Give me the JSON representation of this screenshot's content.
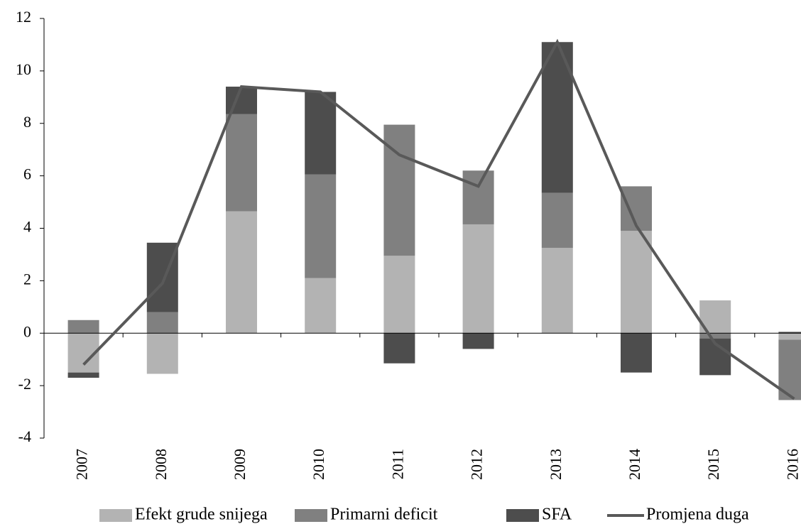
{
  "chart_data": {
    "type": "bar",
    "stacked": true,
    "categories": [
      "2007",
      "2008",
      "2009",
      "2010",
      "2011",
      "2012",
      "2013",
      "2014",
      "2015",
      "2016"
    ],
    "series": [
      {
        "name": "Efekt grude snijega",
        "color": "#b3b3b3",
        "values": [
          -1.5,
          -1.55,
          4.65,
          2.1,
          2.95,
          4.15,
          3.25,
          3.9,
          1.25,
          -0.25
        ]
      },
      {
        "name": "Primarni deficit",
        "color": "#808080",
        "values": [
          0.5,
          0.8,
          3.7,
          3.95,
          5.0,
          2.05,
          2.1,
          1.7,
          -0.2,
          -2.3
        ]
      },
      {
        "name": "SFA",
        "color": "#4d4d4d",
        "values": [
          -0.2,
          2.65,
          1.05,
          3.15,
          -1.15,
          -0.6,
          5.75,
          -1.5,
          -1.4,
          0.05
        ]
      },
      {
        "name": "Promjena duga",
        "color": "#595959",
        "type": "line",
        "values": [
          -1.2,
          1.9,
          9.4,
          9.2,
          6.8,
          5.6,
          11.1,
          4.1,
          -0.4,
          -2.5
        ]
      }
    ],
    "ylim": [
      -4,
      12
    ],
    "yticks": [
      -4,
      -2,
      0,
      2,
      4,
      6,
      8,
      10,
      12
    ],
    "legend": "bottom"
  }
}
